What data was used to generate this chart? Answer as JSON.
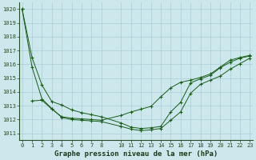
{
  "title": "Graphe pression niveau de la mer (hPa)",
  "bg_color": "#cce8ec",
  "grid_color": "#aacdd4",
  "line_color": "#1a5c1a",
  "x_labels": [
    "0",
    "1",
    "2",
    "3",
    "4",
    "5",
    "6",
    "7",
    "8",
    "",
    "10",
    "11",
    "12",
    "13",
    "14",
    "15",
    "16",
    "17",
    "18",
    "19",
    "20",
    "21",
    "22",
    "23"
  ],
  "series1_x": [
    0,
    1,
    2,
    3,
    4,
    5,
    6,
    7,
    8,
    10,
    11,
    12,
    13,
    14,
    15,
    16,
    17,
    18,
    19,
    20,
    21,
    22,
    23
  ],
  "series1_y": [
    1020.0,
    1016.5,
    1014.5,
    1013.3,
    1013.05,
    1012.7,
    1012.5,
    1012.35,
    1012.2,
    1011.75,
    1011.45,
    1011.35,
    1011.4,
    1011.5,
    1012.55,
    1013.25,
    1014.65,
    1014.95,
    1015.2,
    1015.75,
    1016.15,
    1016.45,
    1016.6
  ],
  "series2_x": [
    0,
    1,
    2,
    3,
    4,
    5,
    6,
    7,
    8,
    10,
    11,
    12,
    13,
    14,
    15,
    16,
    17,
    18,
    19,
    20,
    21,
    22,
    23
  ],
  "series2_y": [
    1020.0,
    1015.8,
    1013.5,
    1012.8,
    1012.15,
    1012.0,
    1011.95,
    1011.9,
    1011.85,
    1011.5,
    1011.3,
    1011.2,
    1011.25,
    1011.35,
    1011.95,
    1012.55,
    1013.9,
    1014.55,
    1014.85,
    1015.15,
    1015.65,
    1016.05,
    1016.45
  ],
  "series3_x": [
    1,
    2,
    3,
    4,
    5,
    6,
    7,
    8,
    10,
    11,
    12,
    13,
    14,
    15,
    16,
    17,
    18,
    19,
    20,
    21,
    22,
    23
  ],
  "series3_y": [
    1013.35,
    1013.4,
    1012.75,
    1012.2,
    1012.1,
    1012.05,
    1012.0,
    1011.95,
    1012.3,
    1012.55,
    1012.75,
    1012.95,
    1013.65,
    1014.3,
    1014.7,
    1014.85,
    1015.05,
    1015.3,
    1015.8,
    1016.3,
    1016.5,
    1016.65
  ],
  "ylim_min": 1010.5,
  "ylim_max": 1020.5,
  "ytick_min": 1011,
  "ytick_max": 1020,
  "xlim_min": -0.3,
  "xlim_max": 23.3,
  "title_fontsize": 6.5,
  "tick_fontsize": 5.0
}
